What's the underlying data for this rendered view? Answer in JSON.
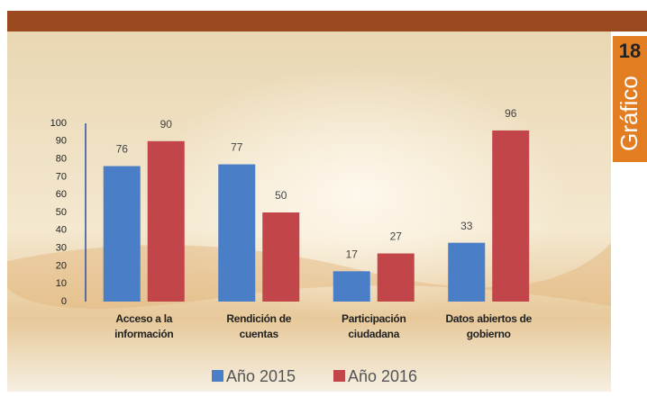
{
  "chart_data": {
    "type": "bar",
    "categories": [
      "Acceso a la información",
      "Rendición de cuentas",
      "Participación ciudadana",
      "Datos abiertos de gobierno"
    ],
    "series": [
      {
        "name": "Año 2015",
        "color": "#4a7fc8",
        "values": [
          76,
          77,
          17,
          33
        ]
      },
      {
        "name": "Año 2016",
        "color": "#c2454a",
        "values": [
          90,
          50,
          27,
          96
        ]
      }
    ],
    "ylim": [
      0,
      100
    ],
    "yticks": [
      0,
      10,
      20,
      30,
      40,
      50,
      60,
      70,
      80,
      90,
      100
    ],
    "grid": false
  },
  "badge": {
    "number": "18",
    "label": "Gráfico"
  }
}
